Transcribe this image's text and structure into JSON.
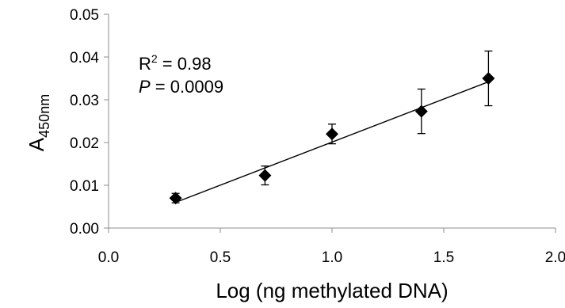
{
  "chart_data": {
    "type": "scatter",
    "title": "",
    "xlabel": "Log (ng methylated DNA)",
    "ylabel": {
      "main": "A",
      "subscript": "450nm"
    },
    "xlim": [
      0.0,
      2.0
    ],
    "ylim": [
      0.0,
      0.05
    ],
    "x_ticks": [
      "0.0",
      "0.5",
      "1.0",
      "1.5",
      "2.0"
    ],
    "y_ticks": [
      "0.00",
      "0.01",
      "0.02",
      "0.03",
      "0.04",
      "0.05"
    ],
    "grid": false,
    "legend": "none",
    "marker": "diamond",
    "marker_color": "#000000",
    "series": [
      {
        "x": [
          0.3,
          0.7,
          1.0,
          1.4,
          1.7
        ],
        "y": [
          0.007,
          0.0123,
          0.022,
          0.0273,
          0.035
        ],
        "error": [
          0.0011,
          0.0022,
          0.0023,
          0.0052,
          0.0064
        ]
      }
    ],
    "trendline": {
      "type": "linear",
      "x": [
        0.3,
        1.7
      ],
      "y": [
        0.006,
        0.0342
      ]
    },
    "annotations": {
      "r2_label": "R",
      "r2_sup": "2",
      "r2_value": " = 0.98",
      "p_label": "P",
      "p_value": " = 0.0009"
    }
  }
}
